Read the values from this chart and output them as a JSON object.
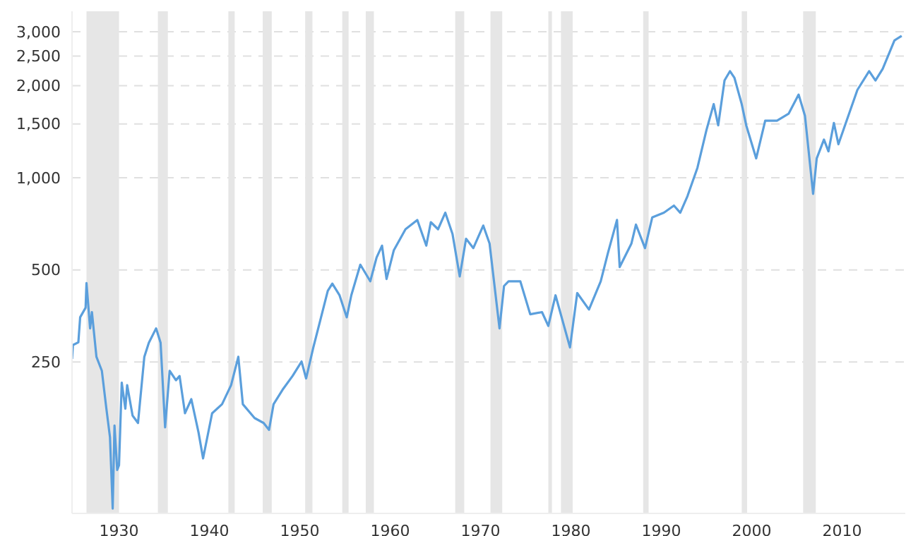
{
  "chart_data": {
    "type": "line",
    "log": "y",
    "grid": "y",
    "marker": "none",
    "line_style": "solid",
    "xlim": [
      1924.8,
      2017
    ],
    "xticks": [
      1930,
      1940,
      1950,
      1960,
      1970,
      1980,
      1990,
      2000,
      2010
    ],
    "ylim": [
      80,
      3500
    ],
    "yticks": [
      {
        "value": 250,
        "label": "250"
      },
      {
        "value": 500,
        "label": "500"
      },
      {
        "value": 1000,
        "label": "1,000"
      },
      {
        "value": 1500,
        "label": "1,500"
      },
      {
        "value": 2000,
        "label": "2,000"
      },
      {
        "value": 2500,
        "label": "2,500"
      },
      {
        "value": 3000,
        "label": "3,000"
      }
    ],
    "x": [
      1924.8,
      1924.9,
      1925.5,
      1925.7,
      1926.3,
      1926.4,
      1926.8,
      1927.0,
      1927.5,
      1928.1,
      1928.6,
      1929.0,
      1929.3,
      1929.5,
      1929.8,
      1930.0,
      1930.3,
      1930.7,
      1930.9,
      1931.5,
      1932.1,
      1932.8,
      1933.3,
      1934.1,
      1934.6,
      1935.1,
      1935.6,
      1936.3,
      1936.7,
      1937.3,
      1938.0,
      1938.8,
      1939.3,
      1940.3,
      1941.4,
      1942.4,
      1943.2,
      1943.7,
      1945.0,
      1946.0,
      1946.6,
      1947.1,
      1948.1,
      1949.2,
      1950.2,
      1950.7,
      1951.5,
      1952.3,
      1953.1,
      1953.6,
      1954.4,
      1955.2,
      1955.7,
      1956.7,
      1957.8,
      1958.5,
      1959.1,
      1959.6,
      1960.4,
      1961.7,
      1963.0,
      1964.0,
      1964.5,
      1965.3,
      1966.1,
      1966.9,
      1967.7,
      1968.4,
      1969.2,
      1970.3,
      1971.0,
      1972.1,
      1972.6,
      1973.1,
      1974.4,
      1975.5,
      1976.8,
      1977.5,
      1978.3,
      1979.9,
      1980.7,
      1982.0,
      1983.3,
      1984.1,
      1985.1,
      1985.4,
      1986.7,
      1987.2,
      1988.2,
      1989.0,
      1990.3,
      1991.4,
      1992.1,
      1992.9,
      1994.0,
      1995.0,
      1995.8,
      1996.3,
      1997.0,
      1997.6,
      1998.1,
      1998.9,
      1999.4,
      2000.5,
      2001.5,
      2002.8,
      2004.1,
      2005.2,
      2005.9,
      2006.8,
      2007.2,
      2008.0,
      2008.5,
      2009.1,
      2009.6,
      2010.6,
      2011.7,
      2013.0,
      2013.7,
      2014.5,
      2015.8,
      2016.6
    ],
    "series": [
      {
        "color": "#5b9fdc",
        "values": [
          256,
          284,
          290,
          350,
          376,
          453,
          322,
          364,
          260,
          234,
          176,
          142,
          83,
          155,
          111,
          115,
          214,
          176,
          210,
          167,
          158,
          260,
          289,
          322,
          289,
          153,
          234,
          218,
          225,
          170,
          189,
          147,
          121,
          170,
          182,
          210,
          260,
          182,
          164,
          158,
          150,
          182,
          203,
          225,
          251,
          221,
          279,
          345,
          427,
          451,
          413,
          350,
          413,
          520,
          459,
          549,
          600,
          467,
          579,
          679,
          728,
          600,
          716,
          679,
          769,
          655,
          476,
          632,
          589,
          698,
          610,
          322,
          443,
          459,
          459,
          358,
          364,
          328,
          413,
          279,
          420,
          371,
          459,
          568,
          728,
          511,
          610,
          703,
          589,
          742,
          769,
          811,
          769,
          871,
          1078,
          1432,
          1741,
          1484,
          2080,
          2230,
          2120,
          1741,
          1484,
          1157,
          1537,
          1537,
          1621,
          1870,
          1593,
          886,
          1157,
          1333,
          1220,
          1511,
          1287,
          1565,
          1937,
          2230,
          2080,
          2270,
          2810,
          2910
        ]
      }
    ],
    "bands": [
      {
        "axis": "x",
        "from": 1926.4,
        "to": 1930.0,
        "color": "#e6e6e6"
      },
      {
        "axis": "x",
        "from": 1934.3,
        "to": 1935.4,
        "color": "#e6e6e6"
      },
      {
        "axis": "x",
        "from": 1942.1,
        "to": 1942.8,
        "color": "#e6e6e6"
      },
      {
        "axis": "x",
        "from": 1945.9,
        "to": 1946.9,
        "color": "#e6e6e6"
      },
      {
        "axis": "x",
        "from": 1950.6,
        "to": 1951.4,
        "color": "#e6e6e6"
      },
      {
        "axis": "x",
        "from": 1954.7,
        "to": 1955.4,
        "color": "#e6e6e6"
      },
      {
        "axis": "x",
        "from": 1957.3,
        "to": 1958.2,
        "color": "#e6e6e6"
      },
      {
        "axis": "x",
        "from": 1967.2,
        "to": 1968.2,
        "color": "#e6e6e6"
      },
      {
        "axis": "x",
        "from": 1971.1,
        "to": 1972.4,
        "color": "#e6e6e6"
      },
      {
        "axis": "x",
        "from": 1977.5,
        "to": 1977.9,
        "color": "#e6e6e6"
      },
      {
        "axis": "x",
        "from": 1978.9,
        "to": 1980.2,
        "color": "#e6e6e6"
      },
      {
        "axis": "x",
        "from": 1988.0,
        "to": 1988.6,
        "color": "#e6e6e6"
      },
      {
        "axis": "x",
        "from": 1998.9,
        "to": 1999.5,
        "color": "#e6e6e6"
      },
      {
        "axis": "x",
        "from": 2005.7,
        "to": 2007.1,
        "color": "#e6e6e6"
      }
    ]
  }
}
